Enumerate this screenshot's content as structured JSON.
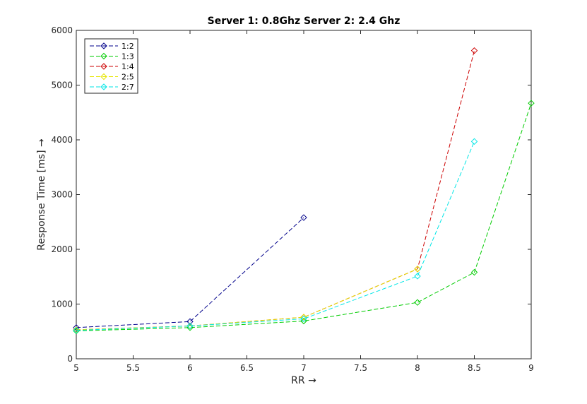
{
  "chart_data": {
    "type": "line",
    "title": "Server 1: 0.8Ghz Server 2: 2.4 Ghz",
    "xlabel": "RR →",
    "ylabel": "Response Time [ms] →",
    "xlim": [
      5,
      9
    ],
    "ylim": [
      0,
      6000
    ],
    "xticks": [
      5,
      5.5,
      6,
      6.5,
      7,
      7.5,
      8,
      8.5,
      9
    ],
    "xtick_labels": [
      "5",
      "5.5",
      "6",
      "6.5",
      "7",
      "7.5",
      "8",
      "8.5",
      "9"
    ],
    "yticks": [
      0,
      1000,
      2000,
      3000,
      4000,
      5000,
      6000
    ],
    "ytick_labels": [
      "0",
      "1000",
      "2000",
      "3000",
      "4000",
      "5000",
      "6000"
    ],
    "grid": false,
    "legend_position": "top-left",
    "line_style": "dashed",
    "marker": "diamond",
    "series": [
      {
        "name": "1:2",
        "color": "#00008b",
        "x": [
          5,
          6,
          7
        ],
        "y": [
          570,
          680,
          2580
        ]
      },
      {
        "name": "1:3",
        "color": "#00cc00",
        "x": [
          5,
          6,
          7,
          8,
          8.5,
          9
        ],
        "y": [
          510,
          570,
          690,
          1030,
          1580,
          4670
        ]
      },
      {
        "name": "1:4",
        "color": "#cc0000",
        "x": [
          5,
          6,
          7,
          8,
          8.5
        ],
        "y": [
          530,
          600,
          760,
          1640,
          5630
        ]
      },
      {
        "name": "2:5",
        "color": "#e6e600",
        "x": [
          5,
          6,
          7,
          8
        ],
        "y": [
          530,
          600,
          760,
          1640
        ]
      },
      {
        "name": "2:7",
        "color": "#00e6e6",
        "x": [
          5,
          6,
          7,
          8,
          8.5
        ],
        "y": [
          520,
          600,
          730,
          1510,
          3970
        ]
      }
    ]
  }
}
